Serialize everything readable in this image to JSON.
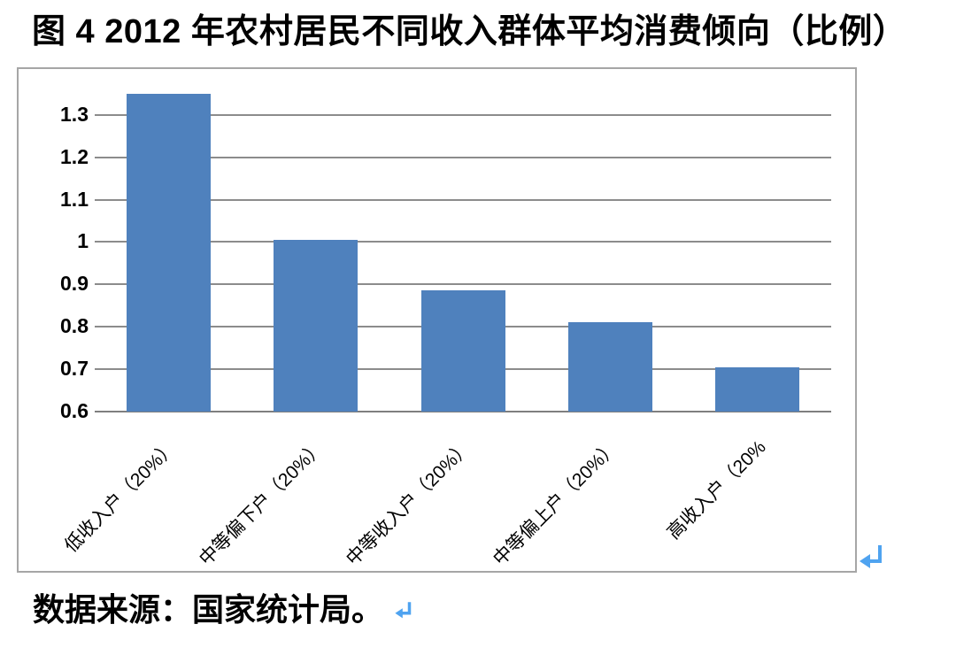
{
  "page": {
    "title": "图 4 2012 年农村居民不同收入群体平均消费倾向（比例）",
    "source_note": "数据来源：国家统计局。"
  },
  "colors": {
    "bar": "#4F81BD",
    "gridline": "#8C8C8C",
    "axis_line": "#7F7F7F",
    "chart_border": "#A6A6A6",
    "return_arrow": "#4FA3F0",
    "text": "#000000"
  },
  "chart_data": {
    "type": "bar",
    "title": "图 4 2012 年农村居民不同收入群体平均消费倾向（比例）",
    "categories": [
      "低收入户（20%）",
      "中等偏下户（20%）",
      "中等收入户（20%）",
      "中等偏上户（20%）",
      "高收入户（20%"
    ],
    "values": [
      1.35,
      1.005,
      0.885,
      0.81,
      0.705
    ],
    "yticks": [
      0.6,
      0.7,
      0.8,
      0.9,
      1,
      1.1,
      1.2,
      1.3
    ],
    "ytick_labels": [
      "0.6",
      "0.7",
      "0.8",
      "0.9",
      "1",
      "1.1",
      "1.2",
      "1.3"
    ],
    "ylim": [
      0.6,
      1.4
    ],
    "xlabel": "",
    "ylabel": "",
    "grid": true,
    "legend": "none",
    "x_label_rotation_deg": 45,
    "source_note": "数据来源：国家统计局。"
  }
}
